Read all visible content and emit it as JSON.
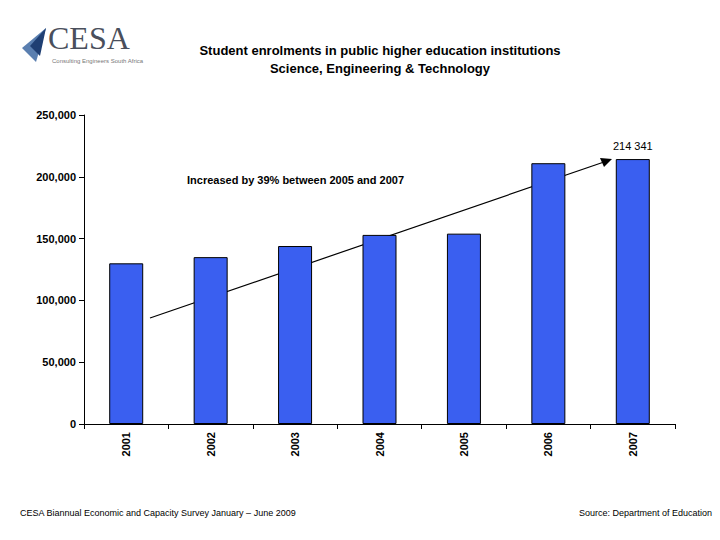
{
  "chart_data": {
    "type": "bar",
    "title": "Student enrolments in public higher education institutions",
    "subtitle": "Science, Engineering & Technology",
    "categories": [
      "2001",
      "2002",
      "2003",
      "2004",
      "2005",
      "2006",
      "2007"
    ],
    "values": [
      130000,
      135000,
      144000,
      153000,
      154000,
      211000,
      214341
    ],
    "value_labels": [
      null,
      null,
      null,
      null,
      null,
      null,
      "214 341"
    ],
    "color": "#3a5ff0",
    "ylim": [
      0,
      250000
    ],
    "yticks": [
      0,
      50000,
      100000,
      150000,
      200000,
      250000
    ],
    "grid": false,
    "annotation": "Increased by 39% between 2005 and 2007"
  },
  "header": {
    "logo": "CESA",
    "logo_tagline": "Consulting Engineers South Africa"
  },
  "footer": {
    "left": "CESA Biannual Economic and Capacity Survey January – June 2009",
    "right": "Source: Department of Education"
  }
}
